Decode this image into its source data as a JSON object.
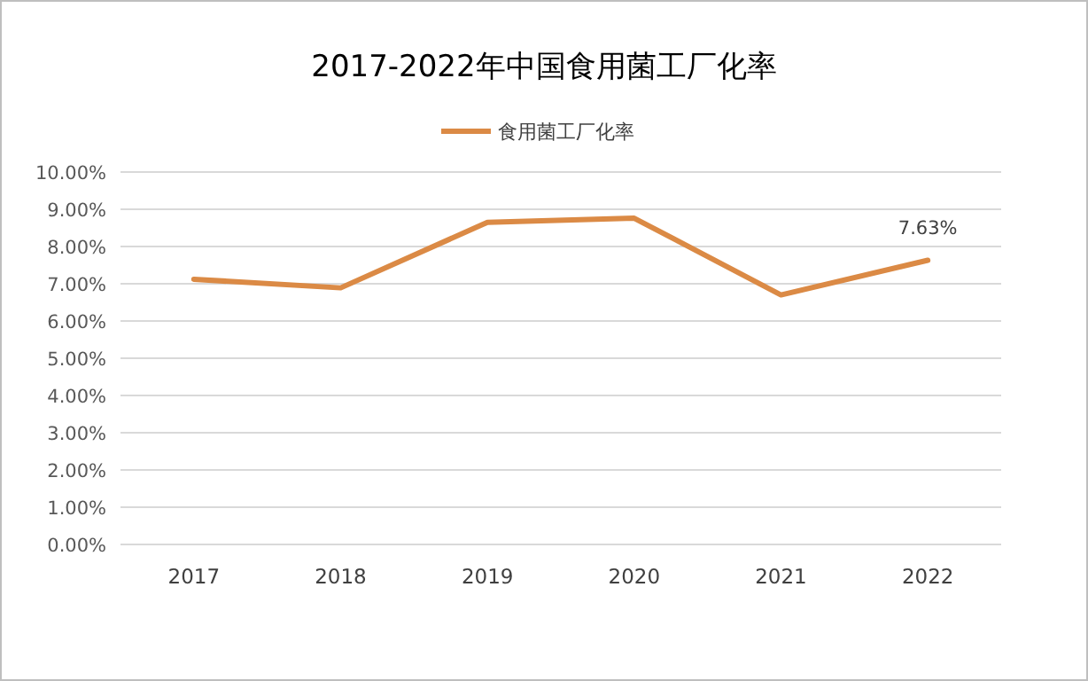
{
  "chart_data": {
    "type": "line",
    "title": "2017-2022年中国食用菌工厂化率",
    "categories": [
      "2017",
      "2018",
      "2019",
      "2020",
      "2021",
      "2022"
    ],
    "series": [
      {
        "name": "食用菌工厂化率",
        "color": "#db8a45",
        "values": [
          7.12,
          6.89,
          8.65,
          8.76,
          6.7,
          7.63
        ],
        "value_labels": [
          null,
          null,
          null,
          null,
          null,
          "7.63%"
        ]
      }
    ],
    "ylim": [
      0,
      10
    ],
    "yticks": [
      {
        "value": 0,
        "label": "0.00%"
      },
      {
        "value": 1,
        "label": "1.00%"
      },
      {
        "value": 2,
        "label": "2.00%"
      },
      {
        "value": 3,
        "label": "3.00%"
      },
      {
        "value": 4,
        "label": "4.00%"
      },
      {
        "value": 5,
        "label": "5.00%"
      },
      {
        "value": 6,
        "label": "6.00%"
      },
      {
        "value": 7,
        "label": "7.00%"
      },
      {
        "value": 8,
        "label": "8.00%"
      },
      {
        "value": 9,
        "label": "9.00%"
      },
      {
        "value": 10,
        "label": "10.00%"
      }
    ],
    "grid": "y",
    "legend": "top",
    "marker": "none",
    "line_style": "solid"
  }
}
